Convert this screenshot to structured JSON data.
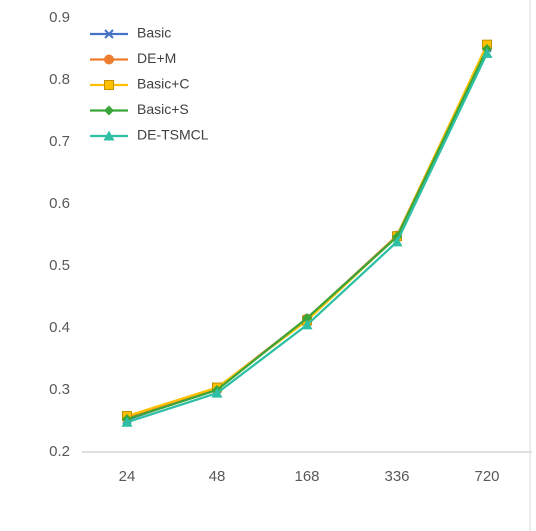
{
  "chart_data": {
    "type": "line",
    "categories": [
      "24",
      "48",
      "168",
      "336",
      "720"
    ],
    "series": [
      {
        "name": "Basic",
        "color": "#4472c4",
        "marker": "x",
        "values": [
          0.252,
          0.302,
          0.414,
          0.548,
          0.852
        ]
      },
      {
        "name": "DE+M",
        "color": "#ed7d31",
        "marker": "circle",
        "values": [
          0.255,
          0.303,
          0.415,
          0.549,
          0.855
        ]
      },
      {
        "name": "Basic+C",
        "color": "#ffc000",
        "marker": "square",
        "values": [
          0.258,
          0.304,
          0.412,
          0.548,
          0.857
        ]
      },
      {
        "name": "Basic+S",
        "color": "#3aa63a",
        "marker": "diamond",
        "values": [
          0.253,
          0.3,
          0.416,
          0.547,
          0.85
        ]
      },
      {
        "name": "DE-TSMCL",
        "color": "#2ebfa5",
        "marker": "triangle",
        "values": [
          0.248,
          0.295,
          0.405,
          0.539,
          0.843
        ]
      }
    ],
    "ylim": [
      0.2,
      0.9
    ],
    "yticks": [
      0.2,
      0.3,
      0.4,
      0.5,
      0.6,
      0.7,
      0.8,
      0.9
    ],
    "grid": false,
    "legend": "upper-left"
  }
}
